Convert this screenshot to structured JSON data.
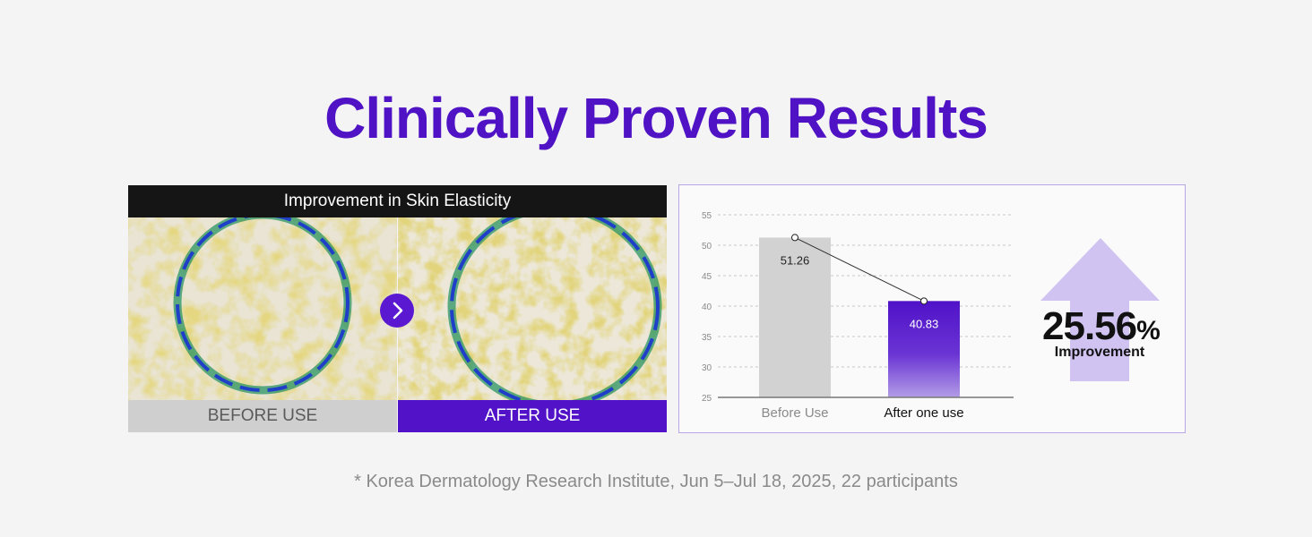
{
  "title": "Clinically Proven Results",
  "comparison": {
    "header": "Improvement in Skin Elasticity",
    "before_label": "BEFORE USE",
    "after_label": "AFTER USE"
  },
  "chart_data": {
    "type": "bar",
    "categories": [
      "Before Use",
      "After one use"
    ],
    "values": [
      51.26,
      40.83
    ],
    "data_labels": [
      "51.26",
      "40.83"
    ],
    "ylim": [
      25,
      55
    ],
    "yticks": [
      25,
      30,
      35,
      40,
      45,
      50,
      55
    ],
    "grid": true,
    "overlay_line": true,
    "colors": [
      "#d2d2d2",
      "#5012c8"
    ]
  },
  "improvement": {
    "value": "25.56",
    "unit": "%",
    "label": "Improvement",
    "arrow_color": "#cbbcf0"
  },
  "footnote": "* Korea Dermatology Research Institute, Jun 5–Jul 18, 2025, 22 participants",
  "accent_color": "#4f12c4"
}
